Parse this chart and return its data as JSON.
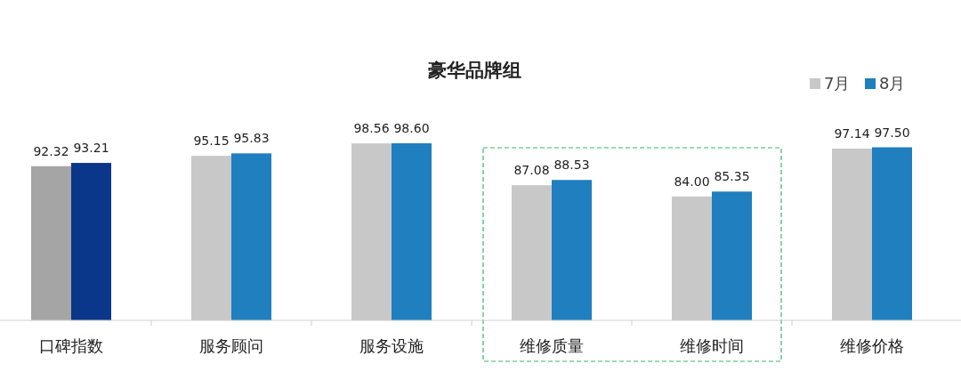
{
  "chart_data": {
    "type": "bar",
    "title": "豪华品牌组",
    "categories": [
      "口碑指数",
      "服务顾问",
      "服务设施",
      "维修质量",
      "维修时间",
      "维修价格"
    ],
    "series": [
      {
        "name": "7月",
        "color": "#c8c8c8",
        "colors": [
          "#a5a5a5",
          "#c8c8c8",
          "#c8c8c8",
          "#c8c8c8",
          "#c8c8c8",
          "#c8c8c8"
        ],
        "values": [
          92.32,
          95.15,
          98.56,
          87.08,
          84.0,
          97.14
        ],
        "value_labels": [
          "92.32",
          "95.15",
          "98.56",
          "87.08",
          "84.00",
          "97.14"
        ]
      },
      {
        "name": "8月",
        "color": "#1f7fbf",
        "colors": [
          "#0b378a",
          "#1f7fbf",
          "#1f7fbf",
          "#1f7fbf",
          "#1f7fbf",
          "#1f7fbf"
        ],
        "values": [
          93.21,
          95.83,
          98.6,
          88.53,
          85.35,
          97.5
        ],
        "value_labels": [
          "93.21",
          "95.83",
          "98.60",
          "88.53",
          "85.35",
          "97.50"
        ]
      }
    ],
    "ylim": [
      50,
      98.6
    ],
    "tick_labels": "x",
    "legend": "top right"
  }
}
